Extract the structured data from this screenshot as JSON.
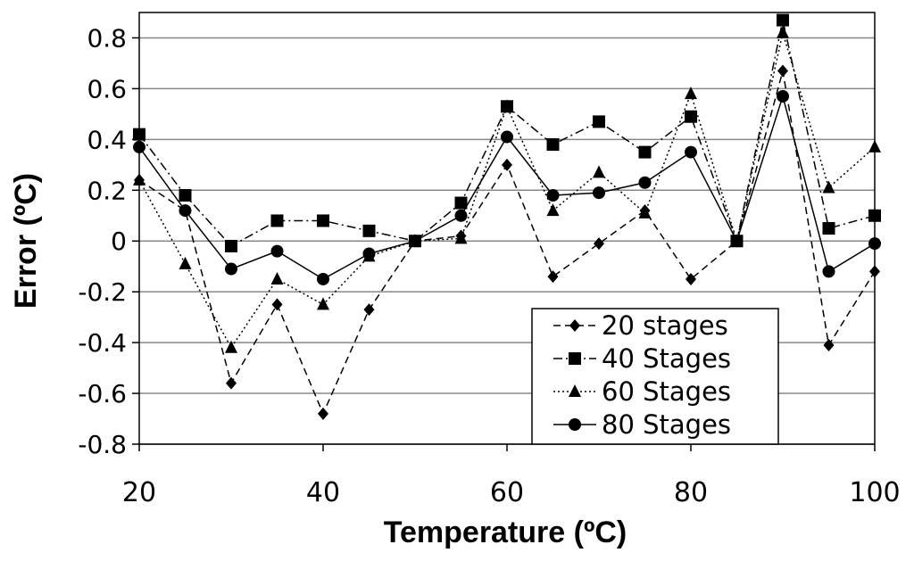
{
  "chart_data": {
    "type": "line",
    "title": "",
    "xlabel": "Temperature (ºC)",
    "ylabel": "Error (ºC)",
    "xlim": [
      20,
      100
    ],
    "ylim": [
      -0.8,
      0.9
    ],
    "xticks": [
      "20",
      "40",
      "60",
      "80",
      "100"
    ],
    "yticks": [
      "-0.8",
      "-0.6",
      "-0.4",
      "-0.2",
      "0",
      "0.2",
      "0.4",
      "0.6",
      "0.8"
    ],
    "grid": "horizontal",
    "legend_position": "bottom-right",
    "x": [
      20,
      25,
      30,
      35,
      40,
      45,
      50,
      55,
      60,
      65,
      70,
      75,
      80,
      85,
      90,
      95,
      100
    ],
    "series": [
      {
        "name": "20 stages",
        "marker": "diamond",
        "dash": "8,5",
        "values": [
          0.24,
          0.12,
          -0.56,
          -0.25,
          -0.68,
          -0.27,
          0.0,
          0.02,
          0.3,
          -0.14,
          -0.01,
          0.12,
          -0.15,
          0.0,
          0.67,
          -0.41,
          -0.12
        ]
      },
      {
        "name": "40 Stages",
        "marker": "square",
        "dash": "10,4,2,4",
        "values": [
          0.42,
          0.18,
          -0.02,
          0.08,
          0.08,
          0.04,
          0.0,
          0.15,
          0.53,
          0.38,
          0.47,
          0.35,
          0.49,
          0.0,
          0.87,
          0.05,
          0.1
        ]
      },
      {
        "name": "60 Stages",
        "marker": "triangle",
        "dash": "2,3",
        "values": [
          0.24,
          -0.09,
          -0.42,
          -0.15,
          -0.25,
          -0.06,
          0.0,
          0.01,
          0.53,
          0.12,
          0.27,
          0.11,
          0.58,
          0.0,
          0.82,
          0.21,
          0.37
        ]
      },
      {
        "name": "80 Stages",
        "marker": "circle",
        "dash": "",
        "values": [
          0.37,
          0.12,
          -0.11,
          -0.04,
          -0.15,
          -0.05,
          0.0,
          0.1,
          0.41,
          0.18,
          0.19,
          0.23,
          0.35,
          0.0,
          0.57,
          -0.12,
          -0.01
        ]
      }
    ]
  }
}
